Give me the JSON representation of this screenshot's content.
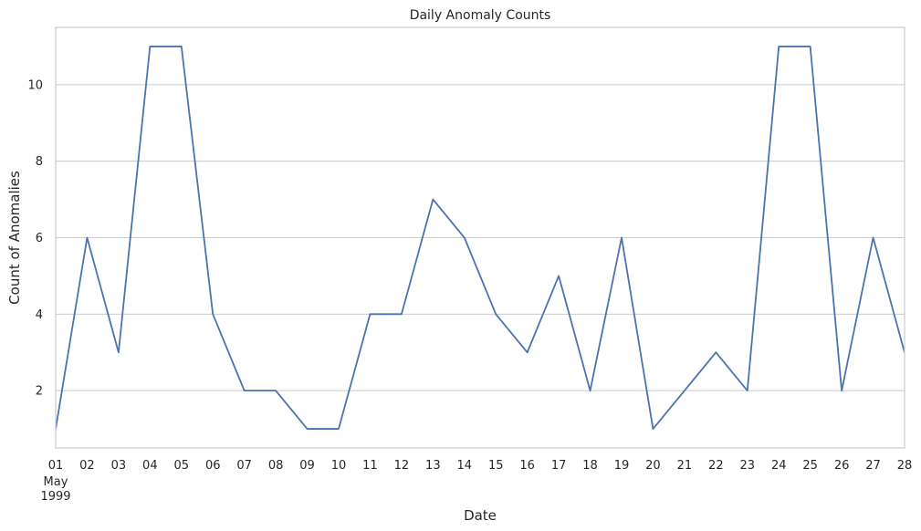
{
  "chart_data": {
    "type": "line",
    "title": "Daily Anomaly Counts",
    "xlabel": "Date",
    "ylabel": "Count of Anomalies",
    "x": [
      "1999-05-01",
      "1999-05-02",
      "1999-05-03",
      "1999-05-04",
      "1999-05-05",
      "1999-05-06",
      "1999-05-07",
      "1999-05-08",
      "1999-05-09",
      "1999-05-10",
      "1999-05-11",
      "1999-05-12",
      "1999-05-13",
      "1999-05-14",
      "1999-05-15",
      "1999-05-16",
      "1999-05-17",
      "1999-05-18",
      "1999-05-19",
      "1999-05-20",
      "1999-05-21",
      "1999-05-22",
      "1999-05-23",
      "1999-05-24",
      "1999-05-25",
      "1999-05-26",
      "1999-05-27",
      "1999-05-28"
    ],
    "x_tick_labels": [
      "01",
      "02",
      "03",
      "04",
      "05",
      "06",
      "07",
      "08",
      "09",
      "10",
      "11",
      "12",
      "13",
      "14",
      "15",
      "16",
      "17",
      "18",
      "19",
      "20",
      "21",
      "22",
      "23",
      "24",
      "25",
      "26",
      "27",
      "28"
    ],
    "x_tick_sublabels": [
      "May",
      "1999"
    ],
    "series": [
      {
        "values": [
          1,
          6,
          3,
          11,
          11,
          4,
          2,
          2,
          1,
          1,
          4,
          4,
          7,
          6,
          4,
          3,
          5,
          2,
          6,
          1,
          2,
          3,
          2,
          11,
          11,
          2,
          6,
          3
        ],
        "color": "#4c72b0"
      }
    ],
    "ylim": [
      0.5,
      11.5
    ],
    "y_ticks": [
      2,
      4,
      6,
      8,
      10
    ],
    "grid": "horizontal",
    "legend": "none"
  }
}
